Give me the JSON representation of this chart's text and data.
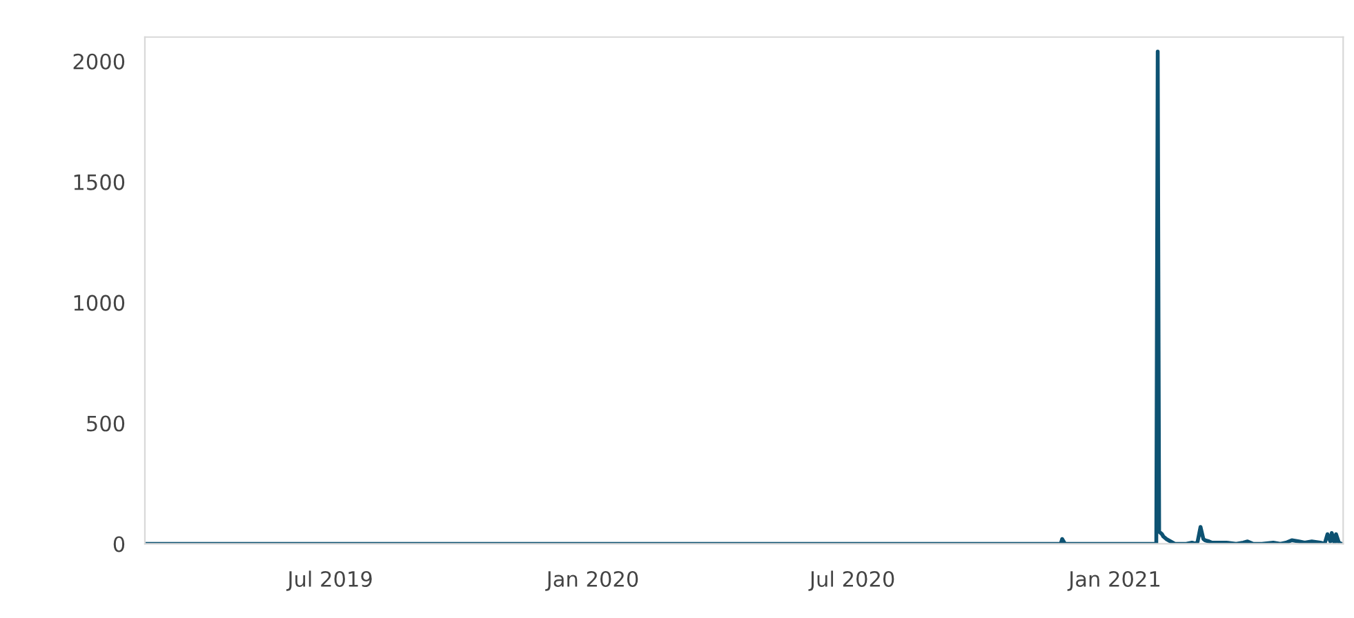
{
  "chart_data": {
    "type": "line",
    "x": [
      "2019-02-21",
      "2020-11-20",
      "2020-11-24",
      "2020-11-25",
      "2020-11-27",
      "2021-01-30",
      "2021-01-31",
      "2021-02-01",
      "2021-02-03",
      "2021-02-04",
      "2021-02-06",
      "2021-02-09",
      "2021-02-12",
      "2021-02-20",
      "2021-02-24",
      "2021-02-27",
      "2021-02-28",
      "2021-03-02",
      "2021-03-04",
      "2021-03-05",
      "2021-03-08",
      "2021-03-10",
      "2021-03-14",
      "2021-03-20",
      "2021-03-27",
      "2021-04-01",
      "2021-04-04",
      "2021-04-08",
      "2021-04-14",
      "2021-04-22",
      "2021-04-27",
      "2021-05-01",
      "2021-05-05",
      "2021-05-10",
      "2021-05-14",
      "2021-05-19",
      "2021-05-25",
      "2021-05-28",
      "2021-05-30",
      "2021-06-01",
      "2021-06-02",
      "2021-06-04",
      "2021-06-05",
      "2021-06-07",
      "2021-06-09"
    ],
    "series": [
      {
        "color": "#0d5272",
        "values": [
          0,
          0,
          0,
          20,
          0,
          0,
          2040,
          50,
          40,
          30,
          20,
          10,
          0,
          0,
          5,
          0,
          10,
          70,
          20,
          15,
          10,
          5,
          5,
          5,
          0,
          5,
          10,
          0,
          0,
          5,
          0,
          5,
          15,
          10,
          5,
          10,
          5,
          0,
          40,
          10,
          45,
          0,
          40,
          5,
          0
        ]
      }
    ],
    "xlim": [
      "2019-02-21",
      "2021-06-10"
    ],
    "xticks": [
      {
        "value": "2019-07-01",
        "label": "Jul 2019"
      },
      {
        "value": "2020-01-01",
        "label": "Jan 2020"
      },
      {
        "value": "2020-07-01",
        "label": "Jul 2020"
      },
      {
        "value": "2021-01-01",
        "label": "Jan 2021"
      }
    ],
    "ylim": [
      0,
      2100
    ],
    "yticks": [
      0,
      500,
      1000,
      1500,
      2000
    ],
    "grid": false
  }
}
